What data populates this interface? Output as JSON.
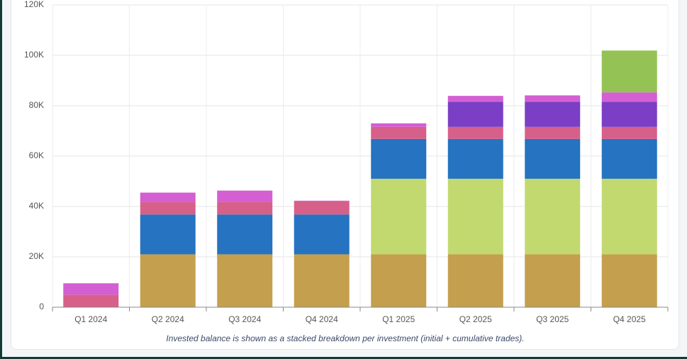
{
  "chart_data": {
    "type": "stacked_bar",
    "caption": "Invested balance is shown as a stacked breakdown per investment (initial + cumulative trades).",
    "categories": [
      "Q1 2024",
      "Q2 2024",
      "Q3 2024",
      "Q4 2024",
      "Q1 2025",
      "Q2 2025",
      "Q3 2025",
      "Q4 2025"
    ],
    "series": [
      {
        "color": "#c49f4e",
        "values": [
          0,
          21000,
          21000,
          21000,
          21000,
          21000,
          21000,
          21000
        ]
      },
      {
        "color": "#c1d96f",
        "values": [
          0,
          0,
          0,
          0,
          30000,
          30000,
          30000,
          30000
        ]
      },
      {
        "color": "#2573c1",
        "values": [
          0,
          15800,
          15800,
          15800,
          15800,
          15800,
          15800,
          15800
        ]
      },
      {
        "color": "#d6608a",
        "values": [
          5000,
          5000,
          5000,
          5200,
          4800,
          4800,
          4800,
          4800
        ]
      },
      {
        "color": "#7a3fc4",
        "values": [
          0,
          0,
          0,
          0,
          0,
          10000,
          10000,
          10000
        ]
      },
      {
        "color": "#d35fd3",
        "values": [
          4500,
          3700,
          4500,
          300,
          1400,
          2300,
          2500,
          3700
        ]
      },
      {
        "color": "#94c254",
        "values": [
          0,
          0,
          0,
          0,
          0,
          0,
          0,
          16600
        ]
      }
    ],
    "ylim": [
      0,
      120000
    ],
    "yticks": [
      0,
      {
        "value": 20000,
        "label": "20K"
      },
      {
        "value": 40000,
        "label": "40K"
      },
      {
        "value": 60000,
        "label": "60K"
      },
      {
        "value": 80000,
        "label": "80K"
      },
      {
        "value": 100000,
        "label": "100K"
      },
      {
        "value": 120000,
        "label": "120K"
      }
    ],
    "grid": true
  }
}
